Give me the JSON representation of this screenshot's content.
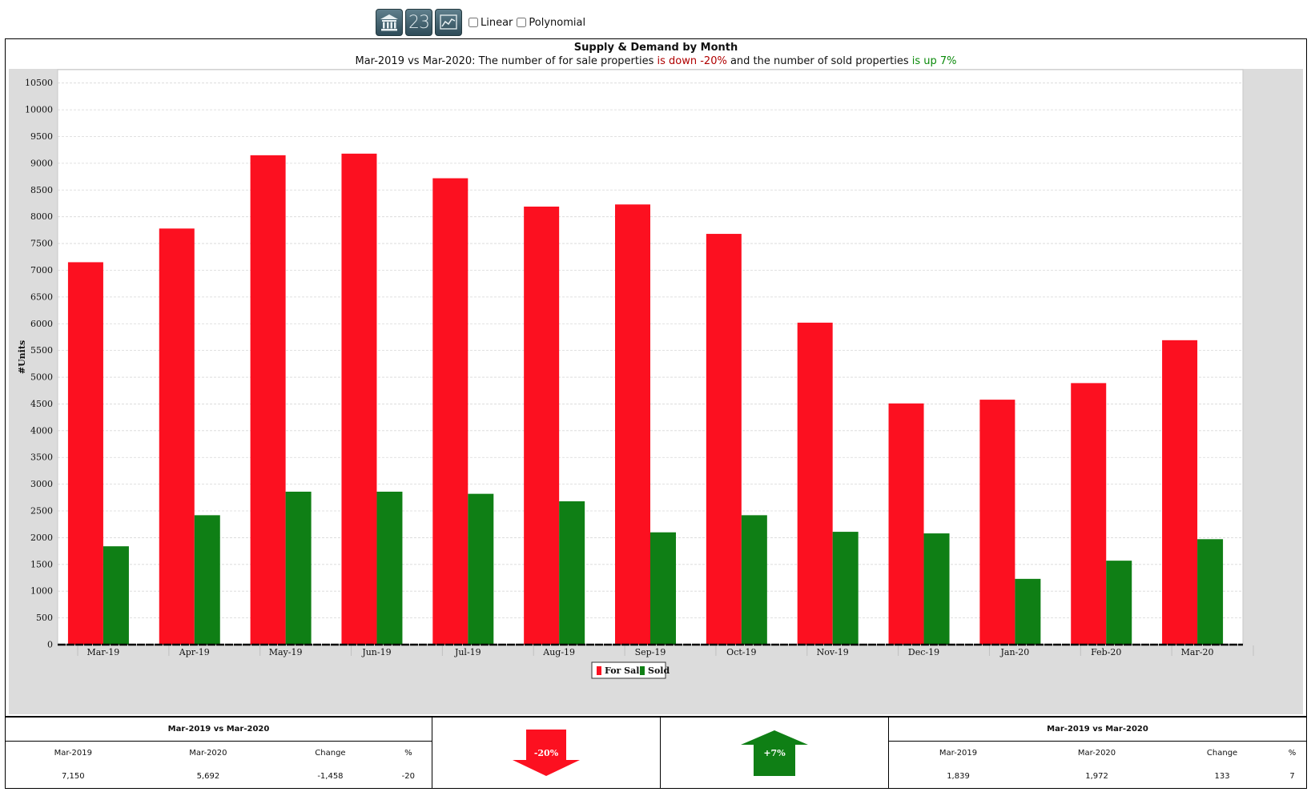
{
  "toolbar": {
    "buttons": [
      {
        "name": "bank-icon"
      },
      {
        "name": "numbers-icon",
        "text": "23"
      },
      {
        "name": "line-chart-icon"
      }
    ],
    "linear_label": "Linear",
    "polynomial_label": "Polynomial",
    "linear_checked": false,
    "polynomial_checked": false
  },
  "chart_data": {
    "type": "bar",
    "title": "Supply & Demand by Month",
    "subtitle": {
      "prefix": "Mar-2019 vs Mar-2020: The number of for sale properties ",
      "down_text": "is down -20%",
      "middle": " and the number of sold properties ",
      "up_text": "is up 7%"
    },
    "ylabel": "#Units",
    "xlabel": "",
    "ylim": [
      0,
      10500
    ],
    "ytick_step": 500,
    "grid": true,
    "legend_position": "bottom-center",
    "categories": [
      "Mar-19",
      "Apr-19",
      "May-19",
      "Jun-19",
      "Jul-19",
      "Aug-19",
      "Sep-19",
      "Oct-19",
      "Nov-19",
      "Dec-19",
      "Jan-20",
      "Feb-20",
      "Mar-20"
    ],
    "series": [
      {
        "name": "For Sale",
        "color": "#fc1020",
        "values": [
          7150,
          7780,
          9150,
          9180,
          8720,
          8190,
          8230,
          7680,
          6020,
          4510,
          4580,
          4890,
          5692
        ]
      },
      {
        "name": "Sold",
        "color": "#0f7f15",
        "values": [
          1839,
          2420,
          2860,
          2860,
          2820,
          2680,
          2100,
          2420,
          2110,
          2080,
          1230,
          1570,
          1972
        ]
      }
    ]
  },
  "summary": {
    "for_sale": {
      "heading": "Mar-2019 vs Mar-2020",
      "columns": [
        "Mar-2019",
        "Mar-2020",
        "Change",
        "%"
      ],
      "values": [
        "7,150",
        "5,692",
        "-1,458",
        "-20"
      ],
      "arrow_label": "-20%",
      "arrow_color": "#fc1020",
      "direction": "down"
    },
    "sold": {
      "heading": "Mar-2019 vs Mar-2020",
      "columns": [
        "Mar-2019",
        "Mar-2020",
        "Change",
        "%"
      ],
      "values": [
        "1,839",
        "1,972",
        "133",
        "7"
      ],
      "arrow_label": "+7%",
      "arrow_color": "#0f7f15",
      "direction": "up"
    }
  }
}
